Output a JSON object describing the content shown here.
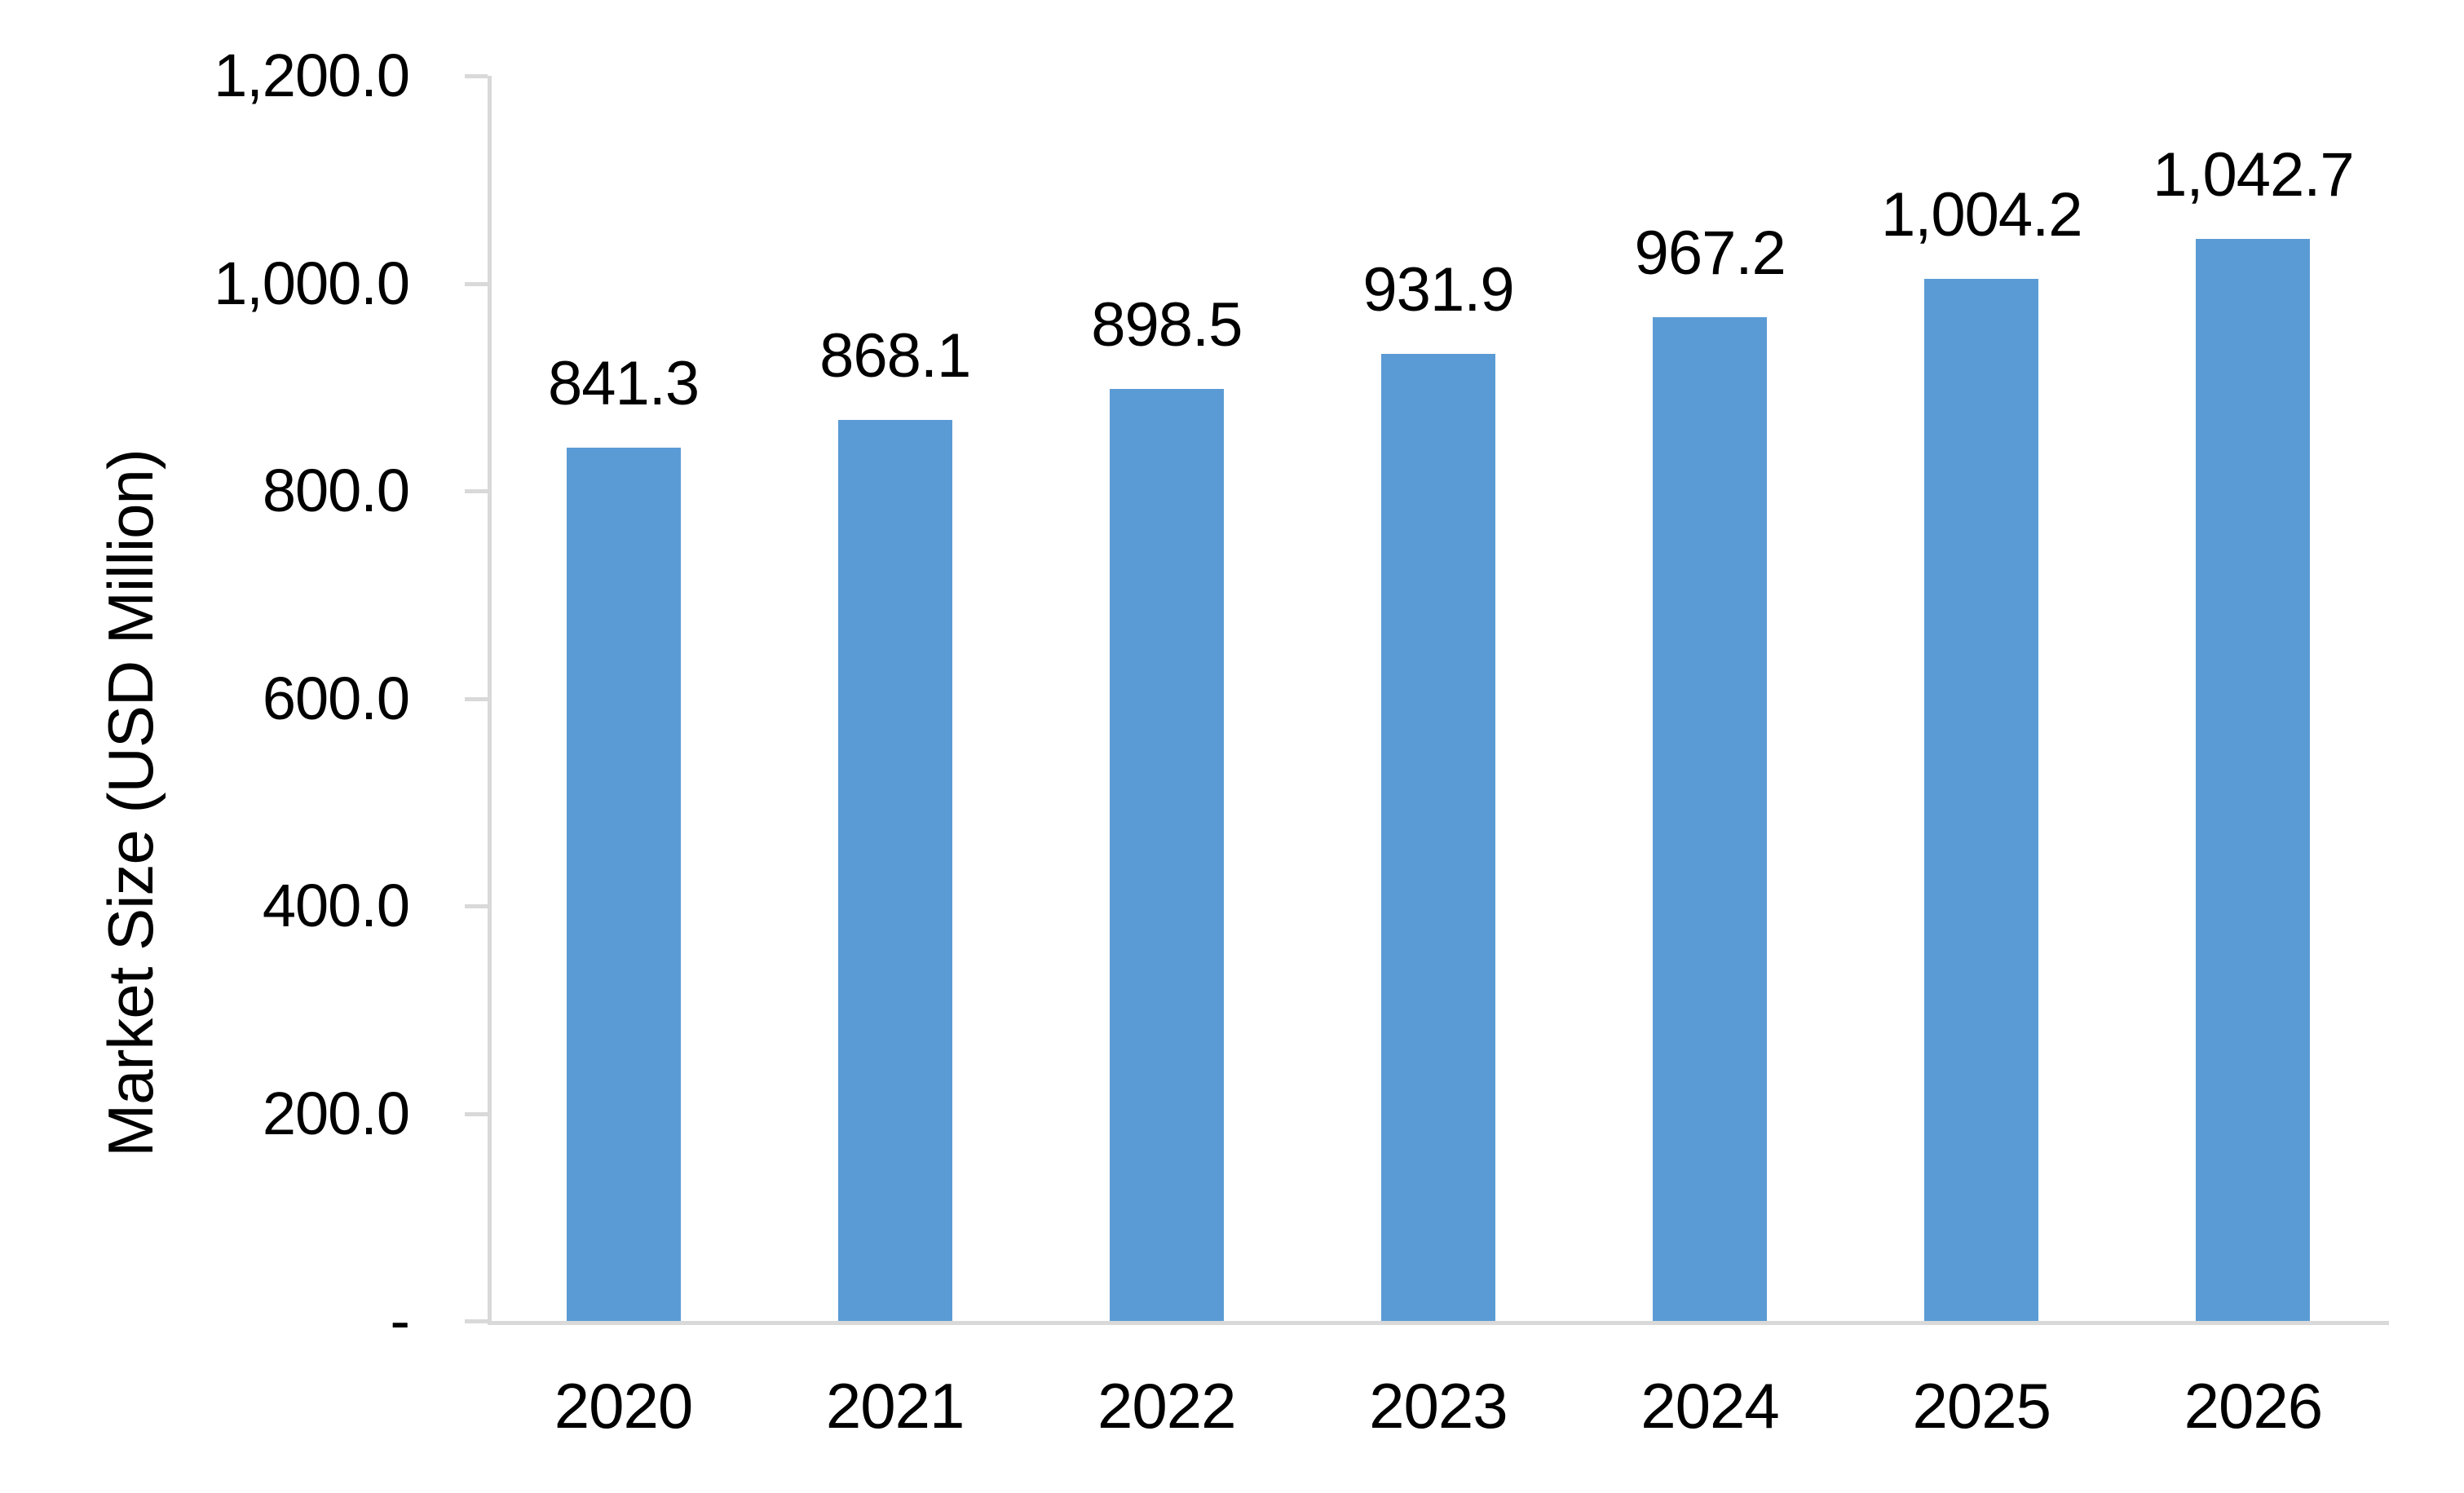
{
  "chart_data": {
    "type": "bar",
    "title": "",
    "xlabel": "",
    "ylabel": "Market Size (USD Million)",
    "categories": [
      "2020",
      "2021",
      "2022",
      "2023",
      "2024",
      "2025",
      "2026"
    ],
    "values": [
      841.3,
      868.1,
      898.5,
      931.9,
      967.2,
      1004.2,
      1042.7
    ],
    "bar_labels": [
      "841.3",
      "868.1",
      "898.5",
      "931.9",
      "967.2",
      "1,004.2",
      "1,042.7"
    ],
    "ylim": [
      0,
      1200
    ],
    "ytick_interval": 200,
    "yticks": [
      {
        "value": 1200,
        "label": "1,200.0"
      },
      {
        "value": 1000,
        "label": "1,000.0"
      },
      {
        "value": 800,
        "label": "800.0"
      },
      {
        "value": 600,
        "label": "600.0"
      },
      {
        "value": 400,
        "label": "400.0"
      },
      {
        "value": 200,
        "label": "200.0"
      },
      {
        "value": 0,
        "label": "-"
      }
    ],
    "grid": false,
    "legend_position": null,
    "colors": {
      "bar": "#5B9BD5",
      "axis": "#D9D9D9",
      "text": "#000000",
      "background": "#FFFFFF"
    }
  }
}
